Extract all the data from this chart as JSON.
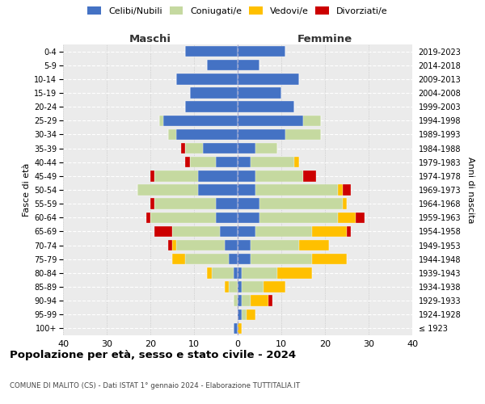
{
  "age_groups": [
    "100+",
    "95-99",
    "90-94",
    "85-89",
    "80-84",
    "75-79",
    "70-74",
    "65-69",
    "60-64",
    "55-59",
    "50-54",
    "45-49",
    "40-44",
    "35-39",
    "30-34",
    "25-29",
    "20-24",
    "15-19",
    "10-14",
    "5-9",
    "0-4"
  ],
  "birth_years": [
    "≤ 1923",
    "1924-1928",
    "1929-1933",
    "1934-1938",
    "1939-1943",
    "1944-1948",
    "1949-1953",
    "1954-1958",
    "1959-1963",
    "1964-1968",
    "1969-1973",
    "1974-1978",
    "1979-1983",
    "1984-1988",
    "1989-1993",
    "1994-1998",
    "1999-2003",
    "2004-2008",
    "2009-2013",
    "2014-2018",
    "2019-2023"
  ],
  "colors": {
    "celibi": "#4472c4",
    "coniugati": "#c5d9a0",
    "vedovi": "#ffc000",
    "divorziati": "#cc0000",
    "bg": "#ebebeb"
  },
  "maschi": {
    "celibi": [
      1,
      0,
      0,
      0,
      1,
      2,
      3,
      4,
      5,
      5,
      9,
      9,
      5,
      8,
      14,
      17,
      12,
      11,
      14,
      7,
      12
    ],
    "coniugati": [
      0,
      0,
      1,
      2,
      5,
      10,
      11,
      11,
      15,
      14,
      14,
      10,
      6,
      4,
      2,
      1,
      0,
      0,
      0,
      0,
      0
    ],
    "vedovi": [
      0,
      0,
      0,
      1,
      1,
      3,
      1,
      0,
      0,
      0,
      0,
      0,
      0,
      0,
      0,
      0,
      0,
      0,
      0,
      0,
      0
    ],
    "divorziati": [
      0,
      0,
      0,
      0,
      0,
      0,
      1,
      4,
      1,
      1,
      0,
      1,
      1,
      1,
      0,
      0,
      0,
      0,
      0,
      0,
      0
    ]
  },
  "femmine": {
    "celibi": [
      0,
      1,
      1,
      1,
      1,
      3,
      3,
      4,
      5,
      5,
      4,
      4,
      3,
      4,
      11,
      15,
      13,
      10,
      14,
      5,
      11
    ],
    "coniugati": [
      0,
      1,
      2,
      5,
      8,
      14,
      11,
      13,
      18,
      19,
      19,
      11,
      10,
      5,
      8,
      4,
      0,
      0,
      0,
      0,
      0
    ],
    "vedovi": [
      1,
      2,
      4,
      5,
      8,
      8,
      7,
      8,
      4,
      1,
      1,
      0,
      1,
      0,
      0,
      0,
      0,
      0,
      0,
      0,
      0
    ],
    "divorziati": [
      0,
      0,
      1,
      0,
      0,
      0,
      0,
      1,
      2,
      0,
      2,
      3,
      0,
      0,
      0,
      0,
      0,
      0,
      0,
      0,
      0
    ]
  },
  "title": "Popolazione per età, sesso e stato civile - 2024",
  "subtitle": "COMUNE DI MALITO (CS) - Dati ISTAT 1° gennaio 2024 - Elaborazione TUTTITALIA.IT",
  "ylabel_left": "Fasce di età",
  "ylabel_right": "Anni di nascita",
  "xlabel_maschi": "Maschi",
  "xlabel_femmine": "Femmine",
  "xlim": 40,
  "legend_labels": [
    "Celibi/Nubili",
    "Coniugati/e",
    "Vedovi/e",
    "Divorziati/e"
  ]
}
